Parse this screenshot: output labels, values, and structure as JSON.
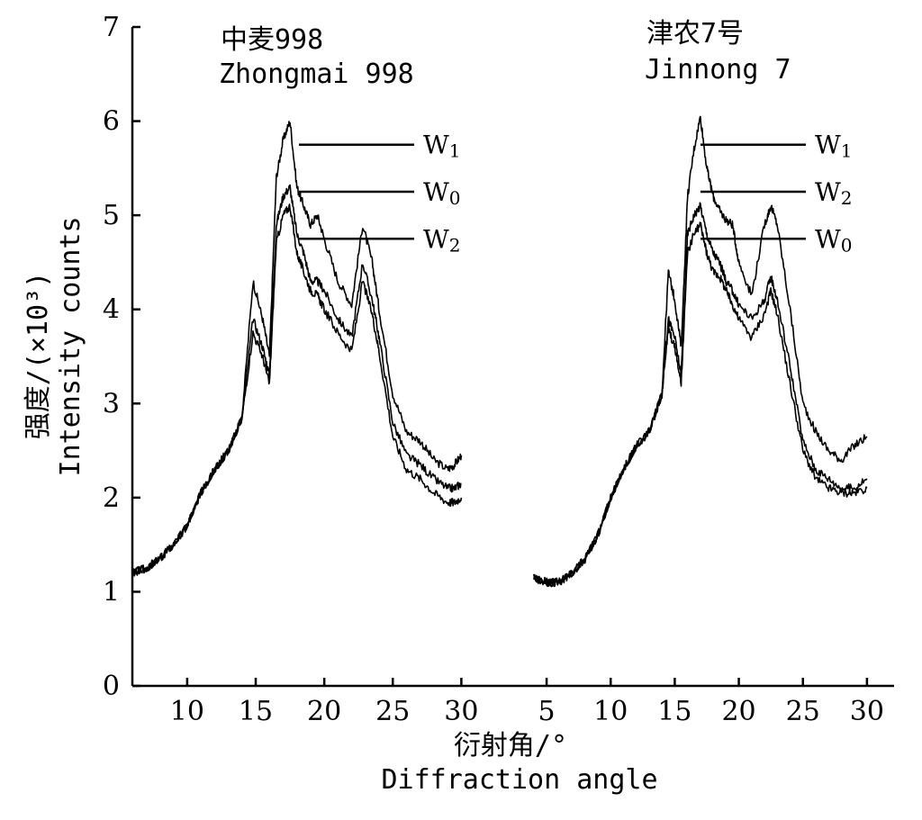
{
  "chart_data": {
    "type": "line",
    "y_axis": {
      "label_zh": "强度/(×10³)",
      "label_en": "Intensity counts",
      "ticks": [
        "0",
        "1",
        "2",
        "3",
        "4",
        "5",
        "6",
        "7"
      ],
      "ylim": [
        0,
        7
      ]
    },
    "x_axis": {
      "label_zh": "衍射角/°",
      "label_en": "Diffraction angle"
    },
    "panels": [
      {
        "title_zh": "中麦998",
        "title_en": "Zhongmai 998",
        "xlim": [
          6,
          30.5
        ],
        "x_ticks": [
          "10",
          "15",
          "20",
          "25",
          "30"
        ],
        "x_tick_values": [
          10,
          15,
          20,
          25,
          30
        ],
        "series_order": [
          "W1",
          "W0",
          "W2"
        ],
        "series": [
          {
            "name": "W1",
            "peak_value": 5.75,
            "x": [
              6,
              7,
              8,
              9,
              10,
              11,
              12,
              13,
              14,
              14.8,
              15.5,
              16,
              16.5,
              17,
              17.5,
              18,
              18.5,
              19,
              19.5,
              20,
              21,
              22,
              22.8,
              23.5,
              24,
              25,
              26,
              27,
              28,
              29,
              29.5,
              30
            ],
            "y": [
              1.2,
              1.25,
              1.35,
              1.5,
              1.7,
              2.05,
              2.3,
              2.5,
              2.85,
              4.3,
              3.9,
              3.5,
              5.4,
              5.8,
              6.0,
              5.3,
              5.1,
              4.9,
              5.0,
              4.75,
              4.3,
              4.05,
              4.9,
              4.5,
              4.0,
              3.1,
              2.7,
              2.6,
              2.4,
              2.3,
              2.35,
              2.45
            ]
          },
          {
            "name": "W0",
            "peak_value": 5.25,
            "x": [
              6,
              7,
              8,
              9,
              10,
              11,
              12,
              13,
              14,
              14.8,
              15.5,
              16,
              16.5,
              17,
              17.5,
              18,
              18.5,
              19,
              19.5,
              20,
              21,
              22,
              22.8,
              23.5,
              24,
              25,
              26,
              27,
              28,
              29,
              29.5,
              30
            ],
            "y": [
              1.2,
              1.25,
              1.35,
              1.5,
              1.7,
              2.05,
              2.3,
              2.5,
              2.85,
              3.9,
              3.6,
              3.3,
              4.9,
              5.2,
              5.3,
              4.8,
              4.6,
              4.3,
              4.3,
              4.2,
              3.9,
              3.7,
              4.5,
              4.1,
              3.7,
              2.8,
              2.45,
              2.35,
              2.2,
              2.1,
              2.1,
              2.15
            ]
          },
          {
            "name": "W2",
            "peak_value": 4.75,
            "x": [
              6,
              7,
              8,
              9,
              10,
              11,
              12,
              13,
              14,
              14.8,
              15.5,
              16,
              16.5,
              17,
              17.5,
              18,
              18.5,
              19,
              19.5,
              20,
              21,
              22,
              22.8,
              23.5,
              24,
              25,
              26,
              27,
              28,
              29,
              29.5,
              30
            ],
            "y": [
              1.2,
              1.25,
              1.35,
              1.5,
              1.7,
              2.05,
              2.3,
              2.5,
              2.85,
              3.75,
              3.5,
              3.2,
              4.7,
              5.0,
              5.1,
              4.6,
              4.4,
              4.2,
              4.15,
              4.0,
              3.75,
              3.55,
              4.3,
              3.95,
              3.55,
              2.65,
              2.3,
              2.2,
              2.05,
              1.95,
              1.95,
              2.0
            ]
          }
        ]
      },
      {
        "title_zh": "津农7号",
        "title_en": "Jinnong 7",
        "xlim": [
          3.8,
          30.5
        ],
        "x_ticks": [
          "5",
          "10",
          "15",
          "20",
          "25",
          "30"
        ],
        "x_tick_values": [
          5,
          10,
          15,
          20,
          25,
          30
        ],
        "series_order": [
          "W1",
          "W2",
          "W0"
        ],
        "series": [
          {
            "name": "W1",
            "peak_value": 5.75,
            "x": [
              4.0,
              5,
              6,
              7,
              8,
              9,
              10,
              11,
              12,
              13,
              14,
              14.5,
              15,
              15.5,
              16,
              16.5,
              17,
              17.5,
              18,
              18.5,
              19,
              19.5,
              20,
              21,
              22,
              22.5,
              23,
              24,
              25,
              26,
              27,
              28,
              29,
              30
            ],
            "y": [
              1.15,
              1.1,
              1.1,
              1.2,
              1.35,
              1.6,
              2.0,
              2.3,
              2.55,
              2.7,
              3.1,
              4.4,
              4.1,
              3.6,
              5.2,
              5.7,
              6.05,
              5.5,
              5.2,
              5.05,
              4.95,
              4.9,
              4.5,
              4.15,
              4.9,
              5.1,
              4.9,
              4.0,
              3.0,
              2.7,
              2.5,
              2.4,
              2.55,
              2.65
            ]
          },
          {
            "name": "W2",
            "peak_value": 5.25,
            "x": [
              4.0,
              5,
              6,
              7,
              8,
              9,
              10,
              11,
              12,
              13,
              14,
              14.5,
              15,
              15.5,
              16,
              16.5,
              17,
              17.5,
              18,
              18.5,
              19,
              19.5,
              20,
              21,
              22,
              22.5,
              23,
              24,
              25,
              26,
              27,
              28,
              29,
              30
            ],
            "y": [
              1.15,
              1.1,
              1.1,
              1.2,
              1.35,
              1.6,
              2.0,
              2.3,
              2.55,
              2.7,
              3.1,
              3.9,
              3.7,
              3.3,
              4.8,
              5.0,
              5.1,
              4.8,
              4.6,
              4.5,
              4.3,
              4.2,
              4.05,
              3.9,
              4.1,
              4.35,
              4.1,
              3.4,
              2.6,
              2.3,
              2.2,
              2.1,
              2.1,
              2.2
            ]
          },
          {
            "name": "W0",
            "peak_value": 4.75,
            "x": [
              4.0,
              5,
              6,
              7,
              8,
              9,
              10,
              11,
              12,
              13,
              14,
              14.5,
              15,
              15.5,
              16,
              16.5,
              17,
              17.5,
              18,
              18.5,
              19,
              19.5,
              20,
              21,
              22,
              22.5,
              23,
              24,
              25,
              26,
              27,
              28,
              29,
              30
            ],
            "y": [
              1.15,
              1.1,
              1.1,
              1.2,
              1.35,
              1.6,
              2.0,
              2.3,
              2.55,
              2.7,
              3.1,
              3.8,
              3.6,
              3.2,
              4.6,
              4.8,
              4.9,
              4.6,
              4.4,
              4.35,
              4.2,
              4.05,
              3.9,
              3.7,
              3.95,
              4.2,
              3.95,
              3.2,
              2.5,
              2.2,
              2.1,
              2.05,
              2.05,
              2.1
            ]
          }
        ]
      }
    ]
  }
}
